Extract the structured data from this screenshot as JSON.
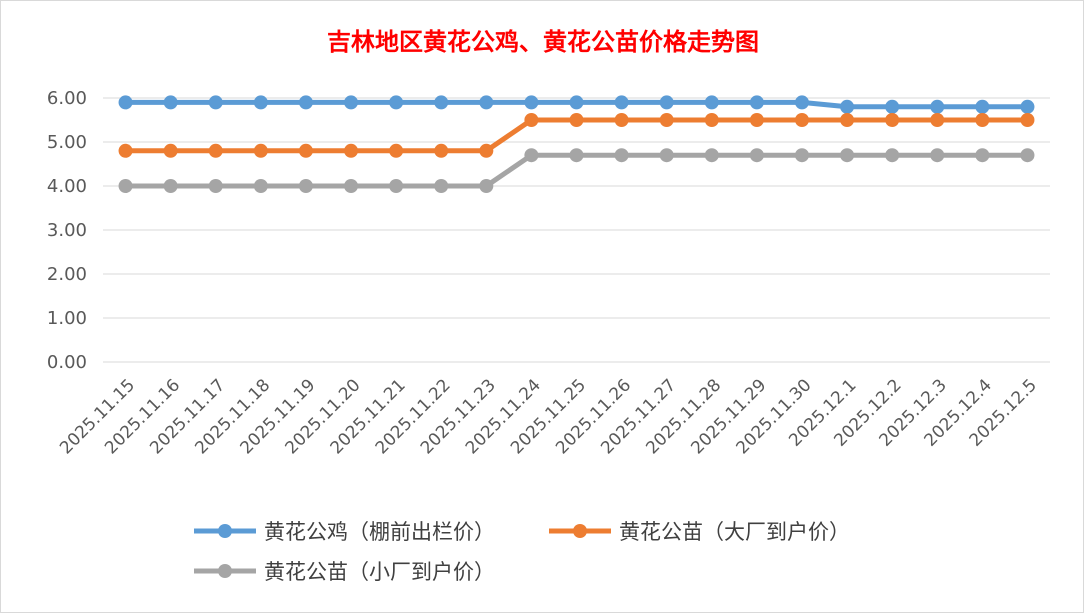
{
  "chart_data": {
    "type": "line",
    "title": "吉林地区黄花公鸡、黄花公苗价格走势图",
    "xlabel": "",
    "ylabel": "",
    "ylim": [
      0,
      6
    ],
    "y_ticks": [
      "0.00",
      "1.00",
      "2.00",
      "3.00",
      "4.00",
      "5.00",
      "6.00"
    ],
    "grid": true,
    "legend_position": "bottom",
    "categories": [
      "2025.11.15",
      "2025.11.16",
      "2025.11.17",
      "2025.11.18",
      "2025.11.19",
      "2025.11.20",
      "2025.11.21",
      "2025.11.22",
      "2025.11.23",
      "2025.11.24",
      "2025.11.25",
      "2025.11.26",
      "2025.11.27",
      "2025.11.28",
      "2025.11.29",
      "2025.11.30",
      "2025.12.1",
      "2025.12.2",
      "2025.12.3",
      "2025.12.4",
      "2025.12.5"
    ],
    "series": [
      {
        "name": "黄花公鸡（棚前出栏价）",
        "color": "#5b9bd5",
        "values": [
          5.9,
          5.9,
          5.9,
          5.9,
          5.9,
          5.9,
          5.9,
          5.9,
          5.9,
          5.9,
          5.9,
          5.9,
          5.9,
          5.9,
          5.9,
          5.9,
          5.8,
          5.8,
          5.8,
          5.8,
          5.8
        ]
      },
      {
        "name": "黄花公苗（大厂到户价）",
        "color": "#ed7d31",
        "values": [
          4.8,
          4.8,
          4.8,
          4.8,
          4.8,
          4.8,
          4.8,
          4.8,
          4.8,
          5.5,
          5.5,
          5.5,
          5.5,
          5.5,
          5.5,
          5.5,
          5.5,
          5.5,
          5.5,
          5.5,
          5.5
        ]
      },
      {
        "name": "黄花公苗（小厂到户价）",
        "color": "#a5a5a5",
        "values": [
          4.0,
          4.0,
          4.0,
          4.0,
          4.0,
          4.0,
          4.0,
          4.0,
          4.0,
          4.7,
          4.7,
          4.7,
          4.7,
          4.7,
          4.7,
          4.7,
          4.7,
          4.7,
          4.7,
          4.7,
          4.7
        ]
      }
    ]
  }
}
